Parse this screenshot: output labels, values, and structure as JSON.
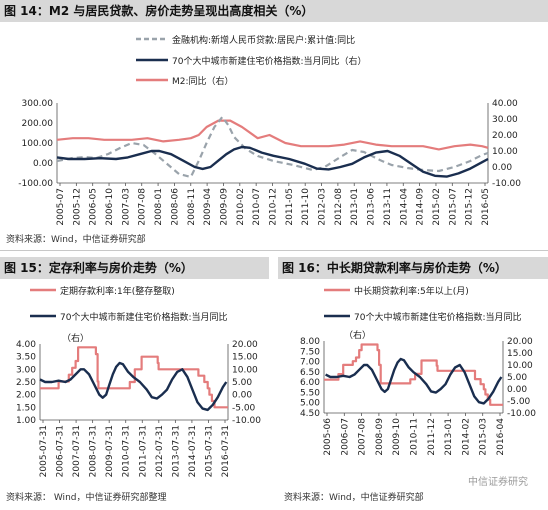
{
  "fig14": {
    "title": "图 14：M2 与居民贷款、房价走势呈现出高度相关（%）",
    "source": "资料来源：Wind，中信证券研究部",
    "chart_data": {
      "type": "line",
      "x_ticks": [
        "2005-07",
        "2005-12",
        "2006-05",
        "2006-10",
        "2007-03",
        "2007-08",
        "2008-01",
        "2008-06",
        "2008-11",
        "2009-04",
        "2009-09",
        "2010-02",
        "2010-07",
        "2010-12",
        "2011-05",
        "2011-10",
        "2012-03",
        "2012-08",
        "2013-01",
        "2013-06",
        "2013-11",
        "2014-04",
        "2014-09",
        "2015-02",
        "2015-07",
        "2015-12",
        "2016-05"
      ],
      "x_range": [
        2005.5,
        2016.45
      ],
      "y_left": {
        "ticks": [
          "300.00",
          "200.00",
          "100.00",
          "0.00",
          "-100.00"
        ],
        "range": [
          -100,
          300
        ]
      },
      "y_right": {
        "ticks": [
          "40.00",
          "30.00",
          "20.00",
          "10.00",
          "0.00",
          "-10.00"
        ],
        "range": [
          -10,
          40
        ]
      },
      "series": [
        {
          "name": "金融机构:新增人民币贷款:居民户:累计值:同比",
          "axis": "left",
          "style": "dashed",
          "color": "#9aa3ab",
          "x": [
            2005.5,
            2005.9,
            2006.2,
            2006.5,
            2006.8,
            2007.1,
            2007.4,
            2007.7,
            2008.0,
            2008.3,
            2008.6,
            2008.9,
            2009.1,
            2009.3,
            2009.5,
            2009.7,
            2009.85,
            2010.0,
            2010.3,
            2010.6,
            2011.0,
            2011.5,
            2012.0,
            2012.3,
            2012.7,
            2013.0,
            2013.3,
            2013.7,
            2014.0,
            2014.4,
            2014.8,
            2015.2,
            2015.6,
            2016.0,
            2016.3,
            2016.45
          ],
          "values": [
            10,
            25,
            30,
            25,
            45,
            75,
            100,
            90,
            45,
            -5,
            -55,
            -70,
            10,
            100,
            180,
            230,
            190,
            130,
            70,
            35,
            10,
            -10,
            -35,
            -20,
            30,
            65,
            55,
            15,
            -10,
            -25,
            -35,
            -40,
            -20,
            10,
            40,
            50
          ]
        },
        {
          "name": "70个大中城市新建住宅价格指数:当月同比（右）",
          "axis": "right",
          "style": "solid",
          "color": "#1a2e4f",
          "x": [
            2005.5,
            2005.8,
            2006.2,
            2006.6,
            2007.0,
            2007.3,
            2007.6,
            2007.9,
            2008.1,
            2008.4,
            2008.7,
            2009.0,
            2009.2,
            2009.4,
            2009.6,
            2009.8,
            2010.0,
            2010.2,
            2010.4,
            2010.7,
            2011.0,
            2011.4,
            2011.8,
            2012.1,
            2012.4,
            2012.7,
            2013.0,
            2013.3,
            2013.6,
            2013.9,
            2014.2,
            2014.5,
            2014.8,
            2015.1,
            2015.4,
            2015.7,
            2016.0,
            2016.3,
            2016.45
          ],
          "values": [
            6,
            5,
            5,
            5.5,
            5,
            6,
            8,
            10,
            10,
            8,
            4,
            0,
            -1.2,
            0,
            4,
            8,
            11,
            12.5,
            12,
            9,
            7,
            5,
            2,
            -1,
            -1.5,
            0,
            2,
            6,
            9,
            10,
            7,
            2,
            -3,
            -5.5,
            -6,
            -4,
            -1,
            3,
            5
          ]
        },
        {
          "name": "M2:同比（右）",
          "axis": "right",
          "style": "solid",
          "color": "#e47c7c",
          "x": [
            2005.5,
            2005.9,
            2006.3,
            2006.7,
            2007.0,
            2007.4,
            2007.8,
            2008.2,
            2008.6,
            2008.9,
            2009.1,
            2009.3,
            2009.6,
            2009.9,
            2010.2,
            2010.6,
            2010.9,
            2011.3,
            2011.7,
            2012.0,
            2012.4,
            2012.8,
            2013.2,
            2013.6,
            2014.0,
            2014.4,
            2014.8,
            2015.2,
            2015.6,
            2016.0,
            2016.3,
            2016.45
          ],
          "values": [
            17,
            18,
            18,
            17,
            17,
            17,
            18,
            16,
            17,
            18,
            20,
            25,
            29,
            29,
            25,
            18,
            20,
            15,
            13,
            13,
            13,
            14,
            16,
            14,
            13,
            13,
            13,
            11,
            13,
            14,
            13,
            12
          ]
        }
      ]
    }
  },
  "fig15": {
    "title": "图 15：定存利率与房价走势（%）",
    "source": "资料来源：  Wind，中信证券研究部整理",
    "legend_right_note": "（右）",
    "chart_data": {
      "type": "line",
      "x_ticks": [
        "2005-07-31",
        "2006-07-31",
        "2007-07-31",
        "2008-07-31",
        "2009-07-31",
        "2010-07-31",
        "2011-07-31",
        "2012-07-31",
        "2013-07-31",
        "2014-07-31",
        "2015-07-31",
        "2016-07-31"
      ],
      "x_range": [
        2005.5,
        2016.6
      ],
      "y_left": {
        "ticks": [
          "4.00",
          "3.50",
          "3.00",
          "2.50",
          "2.00",
          "1.50",
          "1.00"
        ],
        "range": [
          1.0,
          4.0
        ]
      },
      "y_right": {
        "ticks": [
          "20.00",
          "15.00",
          "10.00",
          "5.00",
          "0.00",
          "-5.00",
          "-10.00"
        ],
        "range": [
          -10,
          20
        ]
      },
      "series": [
        {
          "name": "定期存款利率:1年(整存整取)",
          "axis": "left",
          "style": "step",
          "color": "#e47c7c",
          "x": [
            2005.5,
            2006.6,
            2007.2,
            2007.4,
            2007.6,
            2007.75,
            2008.8,
            2008.9,
            2008.95,
            2010.8,
            2011.1,
            2011.5,
            2012.45,
            2012.5,
            2014.85,
            2015.2,
            2015.4,
            2015.5,
            2015.65,
            2015.8,
            2016.6
          ],
          "values": [
            2.25,
            2.52,
            2.79,
            3.06,
            3.33,
            3.87,
            3.6,
            2.52,
            2.25,
            2.5,
            3.0,
            3.5,
            3.25,
            3.0,
            2.75,
            2.5,
            2.25,
            2.0,
            1.75,
            1.5,
            1.5
          ]
        },
        {
          "name": "70个大中城市新建住宅价格指数:当月同比",
          "axis": "right",
          "style": "solid",
          "color": "#1a2e4f",
          "x": [
            2005.5,
            2005.8,
            2006.2,
            2006.6,
            2007.0,
            2007.3,
            2007.6,
            2007.9,
            2008.1,
            2008.4,
            2008.7,
            2009.0,
            2009.2,
            2009.4,
            2009.6,
            2009.8,
            2010.0,
            2010.2,
            2010.4,
            2010.7,
            2011.0,
            2011.4,
            2011.8,
            2012.1,
            2012.4,
            2012.7,
            2013.0,
            2013.3,
            2013.6,
            2013.9,
            2014.2,
            2014.5,
            2014.8,
            2015.1,
            2015.4,
            2015.7,
            2016.0,
            2016.3,
            2016.5
          ],
          "values": [
            6,
            5,
            5,
            5.5,
            5,
            6,
            8,
            10,
            10,
            8,
            4,
            0,
            -1.2,
            0,
            4,
            8,
            11,
            12.5,
            12,
            9,
            7,
            5,
            2,
            -1,
            -1.5,
            0,
            2,
            6,
            9,
            10,
            7,
            2,
            -3,
            -5.5,
            -6,
            -4,
            -1,
            3,
            5
          ]
        }
      ]
    }
  },
  "fig16": {
    "title": "图 16：中长期贷款利率与房价走势（%）",
    "source": "资料来源：Wind，中信证券研究部",
    "legend_right_note": "（右）",
    "watermark": "中信证券研究",
    "chart_data": {
      "type": "line",
      "x_ticks": [
        "2005-06",
        "2006-07",
        "2007-08",
        "2008-09",
        "2009-10",
        "2010-11",
        "2011-12",
        "2013-01",
        "2014-02",
        "2015-03",
        "2016-04"
      ],
      "x_range": [
        2005.4,
        2016.6
      ],
      "y_left": {
        "ticks": [
          "8.00",
          "7.50",
          "7.00",
          "6.50",
          "6.00",
          "5.50",
          "5.00",
          "4.50"
        ],
        "range": [
          4.5,
          8.0
        ]
      },
      "y_right": {
        "ticks": [
          "20.00",
          "15.00",
          "10.00",
          "5.00",
          "0.00",
          "-5.00",
          "-10.00"
        ],
        "range": [
          -10,
          20
        ]
      },
      "series": [
        {
          "name": "中长期贷款利率:5年以上(月)",
          "axis": "left",
          "style": "step",
          "color": "#e47c7c",
          "x": [
            2005.4,
            2006.3,
            2006.6,
            2007.2,
            2007.4,
            2007.6,
            2007.75,
            2008.0,
            2008.75,
            2008.85,
            2008.95,
            2010.8,
            2011.1,
            2011.5,
            2012.45,
            2012.5,
            2014.85,
            2015.2,
            2015.4,
            2015.5,
            2015.65,
            2015.8,
            2016.6
          ],
          "values": [
            6.12,
            6.39,
            6.84,
            7.02,
            7.2,
            7.56,
            7.83,
            7.83,
            7.56,
            6.84,
            5.94,
            6.14,
            6.4,
            7.05,
            6.8,
            6.55,
            6.15,
            5.9,
            5.65,
            5.4,
            5.15,
            4.9,
            4.9
          ]
        },
        {
          "name": "70个大中城市新建住宅价格指数:当月同比",
          "axis": "right",
          "style": "solid",
          "color": "#1a2e4f",
          "x": [
            2005.5,
            2005.8,
            2006.2,
            2006.6,
            2007.0,
            2007.3,
            2007.6,
            2007.9,
            2008.1,
            2008.4,
            2008.7,
            2009.0,
            2009.2,
            2009.4,
            2009.6,
            2009.8,
            2010.0,
            2010.2,
            2010.4,
            2010.7,
            2011.0,
            2011.4,
            2011.8,
            2012.1,
            2012.4,
            2012.7,
            2013.0,
            2013.3,
            2013.6,
            2013.9,
            2014.2,
            2014.5,
            2014.8,
            2015.1,
            2015.4,
            2015.7,
            2016.0,
            2016.3,
            2016.5
          ],
          "values": [
            6,
            5,
            5,
            5.5,
            5,
            6,
            8,
            10,
            10,
            8,
            4,
            0,
            -1.2,
            0,
            4,
            8,
            11,
            12.5,
            12,
            9,
            7,
            5,
            2,
            -1,
            -1.5,
            0,
            2,
            6,
            9,
            10,
            7,
            2,
            -3,
            -5.5,
            -6,
            -4,
            -1,
            3,
            5
          ]
        }
      ]
    }
  }
}
